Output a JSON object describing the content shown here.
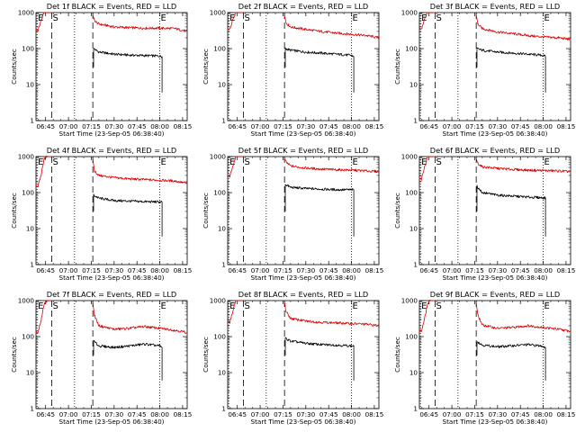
{
  "chart_data": {
    "type": "line",
    "layout_grid": "3x3",
    "legend_note": "BLACK = Events, RED = LLD",
    "y_axis": {
      "label": "Counts/sec",
      "scale": "log",
      "range": [
        1,
        1000
      ],
      "tick_labels": [
        "1",
        "10",
        "100",
        "1000"
      ]
    },
    "x_axis": {
      "label": "Start Time (23-Sep-05 06:38:40)",
      "range": [
        "06:38:40",
        "08:18:00"
      ],
      "tick_labels": [
        "06:45",
        "07:00",
        "07:15",
        "07:30",
        "07:45",
        "08:00",
        "08:15"
      ]
    },
    "markers": [
      {
        "label": "E",
        "time": "06:39:20",
        "line": "dotted"
      },
      {
        "label": "S",
        "time": "06:49:00",
        "line": "dashed"
      },
      {
        "label": "",
        "time": "07:04:00",
        "line": "dotted"
      },
      {
        "label": "",
        "time": "07:16:00",
        "line": "dashed"
      },
      {
        "label": "E",
        "time": "08:00:00",
        "line": "dotted"
      }
    ],
    "panels": [
      {
        "title": "Det 1f BLACK = Events, RED = LLD",
        "series": [
          {
            "name": "Events",
            "color": "#000000",
            "segments": [
              {
                "x": [
                  "07:16:30",
                  "07:20",
                  "07:30",
                  "07:40",
                  "07:50",
                  "08:00",
                  "08:01:30"
                ],
                "y": [
                  100,
                  80,
                  70,
                  66,
                  64,
                  62,
                  60
                ]
              }
            ]
          },
          {
            "name": "LLD",
            "color": "#dd0000",
            "segments": [
              {
                "x": [
                  "06:38:40",
                  "06:40",
                  "06:42",
                  "06:44",
                  "06:46",
                  "06:48",
                  "06:49"
                ],
                "y": [
                  350,
                  320,
                  600,
                  1000,
                  1000,
                  1000,
                  1000
                ]
              },
              {
                "x": [
                  "07:16",
                  "07:17",
                  "07:20",
                  "07:30",
                  "07:40",
                  "07:50",
                  "08:00",
                  "08:10",
                  "08:18"
                ],
                "y": [
                  900,
                  600,
                  480,
                  400,
                  380,
                  370,
                  370,
                  360,
                  300
                ]
              }
            ]
          }
        ]
      },
      {
        "title": "Det 2f BLACK = Events, RED = LLD",
        "series": [
          {
            "name": "Events",
            "color": "#000000",
            "segments": [
              {
                "x": [
                  "07:16:30",
                  "07:20",
                  "07:30",
                  "07:40",
                  "07:50",
                  "08:00",
                  "08:01:30"
                ],
                "y": [
                  100,
                  90,
                  80,
                  75,
                  70,
                  65,
                  60
                ]
              }
            ]
          },
          {
            "name": "LLD",
            "color": "#dd0000",
            "segments": [
              {
                "x": [
                  "06:38:40",
                  "06:40",
                  "06:42",
                  "06:44",
                  "06:46",
                  "06:48",
                  "06:49"
                ],
                "y": [
                  380,
                  340,
                  650,
                  1000,
                  1000,
                  1000,
                  1000
                ]
              },
              {
                "x": [
                  "07:16",
                  "07:17",
                  "07:20",
                  "07:30",
                  "07:40",
                  "07:50",
                  "08:00",
                  "08:10",
                  "08:18"
                ],
                "y": [
                  900,
                  520,
                  400,
                  340,
                  300,
                  270,
                  250,
                  230,
                  200
                ]
              }
            ]
          }
        ]
      },
      {
        "title": "Det 3f BLACK = Events, RED = LLD",
        "series": [
          {
            "name": "Events",
            "color": "#000000",
            "segments": [
              {
                "x": [
                  "07:16:30",
                  "07:20",
                  "07:30",
                  "07:40",
                  "07:50",
                  "08:00",
                  "08:01:30"
                ],
                "y": [
                  100,
                  90,
                  80,
                  75,
                  70,
                  65,
                  60
                ]
              }
            ]
          },
          {
            "name": "LLD",
            "color": "#dd0000",
            "segments": [
              {
                "x": [
                  "06:38:40",
                  "06:40",
                  "06:42",
                  "06:44",
                  "06:46",
                  "06:48",
                  "06:49"
                ],
                "y": [
                  380,
                  340,
                  650,
                  1000,
                  1000,
                  1000,
                  1000
                ]
              },
              {
                "x": [
                  "07:16",
                  "07:17",
                  "07:20",
                  "07:30",
                  "07:40",
                  "07:50",
                  "08:00",
                  "08:10",
                  "08:18"
                ],
                "y": [
                  900,
                  480,
                  360,
                  290,
                  260,
                  230,
                  210,
                  200,
                  180
                ]
              }
            ]
          }
        ]
      },
      {
        "title": "Det 4f BLACK = Events, RED = LLD",
        "series": [
          {
            "name": "Events",
            "color": "#000000",
            "segments": [
              {
                "x": [
                  "07:16:30",
                  "07:20",
                  "07:30",
                  "07:40",
                  "07:50",
                  "08:00",
                  "08:01:30"
                ],
                "y": [
                  85,
                  70,
                  60,
                  58,
                  56,
                  55,
                  55
                ]
              }
            ]
          },
          {
            "name": "LLD",
            "color": "#dd0000",
            "segments": [
              {
                "x": [
                  "06:38:40",
                  "06:40",
                  "06:42",
                  "06:44",
                  "06:46",
                  "06:48",
                  "06:49"
                ],
                "y": [
                  160,
                  150,
                  300,
                  900,
                  1000,
                  1000,
                  1000
                ]
              },
              {
                "x": [
                  "07:16",
                  "07:17",
                  "07:20",
                  "07:30",
                  "07:40",
                  "07:50",
                  "08:00",
                  "08:10",
                  "08:18"
                ],
                "y": [
                  900,
                  400,
                  300,
                  260,
                  240,
                  230,
                  220,
                  210,
                  180
                ]
              }
            ]
          }
        ]
      },
      {
        "title": "Det 5f BLACK = Events, RED = LLD",
        "series": [
          {
            "name": "Events",
            "color": "#000000",
            "segments": [
              {
                "x": [
                  "07:16:30",
                  "07:20",
                  "07:30",
                  "07:40",
                  "07:50",
                  "08:00",
                  "08:01:30"
                ],
                "y": [
                  170,
                  140,
                  130,
                  125,
                  120,
                  120,
                  120
                ]
              }
            ]
          },
          {
            "name": "LLD",
            "color": "#dd0000",
            "segments": [
              {
                "x": [
                  "06:38:40",
                  "06:40",
                  "06:42",
                  "06:44",
                  "06:46",
                  "06:48",
                  "06:49"
                ],
                "y": [
                  300,
                  280,
                  500,
                  1000,
                  1000,
                  1000,
                  1000
                ]
              },
              {
                "x": [
                  "07:16",
                  "07:17",
                  "07:20",
                  "07:30",
                  "07:40",
                  "07:50",
                  "08:00",
                  "08:10",
                  "08:18"
                ],
                "y": [
                  900,
                  700,
                  550,
                  480,
                  450,
                  430,
                  420,
                  400,
                  380
                ]
              }
            ]
          }
        ]
      },
      {
        "title": "Det 6f BLACK = Events, RED = LLD",
        "series": [
          {
            "name": "Events",
            "color": "#000000",
            "segments": [
              {
                "x": [
                  "07:16:30",
                  "07:20",
                  "07:30",
                  "07:40",
                  "07:50",
                  "08:00",
                  "08:01:30"
                ],
                "y": [
                  150,
                  100,
                  85,
                  80,
                  75,
                  72,
                  70
                ]
              }
            ]
          },
          {
            "name": "LLD",
            "color": "#dd0000",
            "segments": [
              {
                "x": [
                  "06:38:40",
                  "06:40",
                  "06:42",
                  "06:44",
                  "06:46",
                  "06:48",
                  "06:49"
                ],
                "y": [
                  250,
                  230,
                  500,
                  1000,
                  1000,
                  1000,
                  1000
                ]
              },
              {
                "x": [
                  "07:16",
                  "07:17",
                  "07:20",
                  "07:30",
                  "07:40",
                  "07:50",
                  "08:00",
                  "08:10",
                  "08:18"
                ],
                "y": [
                  900,
                  650,
                  520,
                  470,
                  440,
                  420,
                  410,
                  400,
                  380
                ]
              }
            ]
          }
        ]
      },
      {
        "title": "Det 7f BLACK = Events, RED = LLD",
        "series": [
          {
            "name": "Events",
            "color": "#000000",
            "segments": [
              {
                "x": [
                  "07:16:30",
                  "07:20",
                  "07:30",
                  "07:40",
                  "07:50",
                  "08:00",
                  "08:01:30"
                ],
                "y": [
                  75,
                  55,
                  50,
                  55,
                  62,
                  55,
                  50
                ]
              }
            ]
          },
          {
            "name": "LLD",
            "color": "#dd0000",
            "segments": [
              {
                "x": [
                  "06:38:40",
                  "06:40",
                  "06:42",
                  "06:44",
                  "06:46",
                  "06:48",
                  "06:49"
                ],
                "y": [
                  140,
                  130,
                  280,
                  800,
                  1000,
                  1000,
                  1000
                ]
              },
              {
                "x": [
                  "07:16",
                  "07:17",
                  "07:20",
                  "07:30",
                  "07:40",
                  "07:50",
                  "08:00",
                  "08:10",
                  "08:18"
                ],
                "y": [
                  900,
                  400,
                  200,
                  160,
                  170,
                  190,
                  170,
                  150,
                  130
                ]
              }
            ]
          }
        ]
      },
      {
        "title": "Det 8f BLACK = Events, RED = LLD",
        "series": [
          {
            "name": "Events",
            "color": "#000000",
            "segments": [
              {
                "x": [
                  "07:16:30",
                  "07:20",
                  "07:30",
                  "07:40",
                  "07:50",
                  "08:00",
                  "08:01:30"
                ],
                "y": [
                  90,
                  75,
                  65,
                  60,
                  58,
                  55,
                  55
                ]
              }
            ]
          },
          {
            "name": "LLD",
            "color": "#dd0000",
            "segments": [
              {
                "x": [
                  "06:38:40",
                  "06:40",
                  "06:42",
                  "06:44",
                  "06:46",
                  "06:48",
                  "06:49"
                ],
                "y": [
                  260,
                  240,
                  500,
                  1000,
                  1000,
                  1000,
                  1000
                ]
              },
              {
                "x": [
                  "07:16",
                  "07:17",
                  "07:20",
                  "07:30",
                  "07:40",
                  "07:50",
                  "08:00",
                  "08:10",
                  "08:18"
                ],
                "y": [
                  900,
                  500,
                  320,
                  270,
                  250,
                  240,
                  230,
                  220,
                  200
                ]
              }
            ]
          }
        ]
      },
      {
        "title": "Det 9f BLACK = Events, RED = LLD",
        "series": [
          {
            "name": "Events",
            "color": "#000000",
            "segments": [
              {
                "x": [
                  "07:16:30",
                  "07:20",
                  "07:30",
                  "07:40",
                  "07:50",
                  "08:00",
                  "08:01:30"
                ],
                "y": [
                  75,
                  58,
                  52,
                  56,
                  60,
                  54,
                  50
                ]
              }
            ]
          },
          {
            "name": "LLD",
            "color": "#dd0000",
            "segments": [
              {
                "x": [
                  "06:38:40",
                  "06:40",
                  "06:42",
                  "06:44",
                  "06:46",
                  "06:48",
                  "06:49"
                ],
                "y": [
                  150,
                  140,
                  300,
                  800,
                  1000,
                  1000,
                  1000
                ]
              },
              {
                "x": [
                  "07:16",
                  "07:17",
                  "07:20",
                  "07:30",
                  "07:40",
                  "07:50",
                  "08:00",
                  "08:10",
                  "08:18"
                ],
                "y": [
                  900,
                  400,
                  210,
                  170,
                  180,
                  200,
                  180,
                  160,
                  140
                ]
              }
            ]
          }
        ]
      }
    ]
  }
}
